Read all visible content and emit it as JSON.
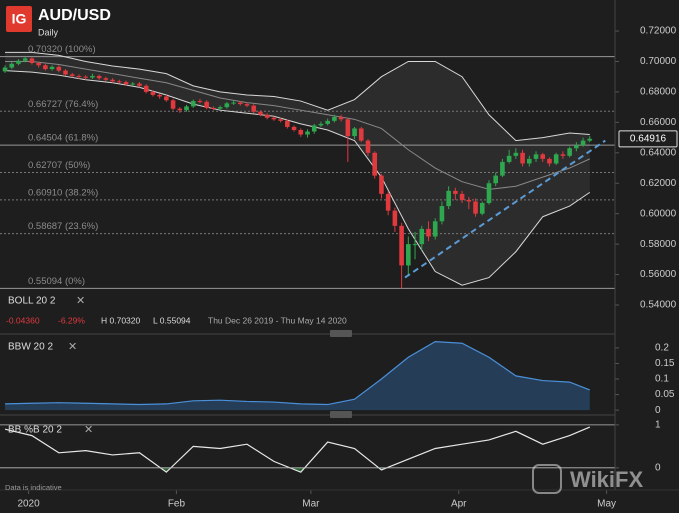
{
  "brand": "IG",
  "footer": "Data is indicative",
  "watermark": "WikiFX",
  "chart_data": [
    {
      "type": "candlestick",
      "title": "AUD/USD",
      "subtitle": "Daily",
      "indicator": {
        "name": "BOLL 20 2",
        "change": "-0.04360",
        "change_pct": "-6.29%",
        "high": "H 0.70320",
        "low": "L 0.55094",
        "range": "Thu Dec 26 2019 - Thu May 14 2020"
      },
      "up_color": "#2ea84f",
      "down_color": "#e0393e",
      "open": [
        0.6935,
        0.696,
        0.6985,
        0.7005,
        0.702,
        0.699,
        0.6975,
        0.695,
        0.6965,
        0.694,
        0.6915,
        0.6905,
        0.69,
        0.6895,
        0.6905,
        0.689,
        0.688,
        0.687,
        0.6865,
        0.685,
        0.6855,
        0.684,
        0.68,
        0.678,
        0.677,
        0.6745,
        0.669,
        0.668,
        0.6705,
        0.674,
        0.6735,
        0.6695,
        0.669,
        0.67,
        0.6725,
        0.673,
        0.672,
        0.671,
        0.667,
        0.665,
        0.663,
        0.662,
        0.661,
        0.657,
        0.655,
        0.652,
        0.654,
        0.658,
        0.659,
        0.661,
        0.6635,
        0.662,
        0.651,
        0.656,
        0.648,
        0.64,
        0.625,
        0.613,
        0.602,
        0.592,
        0.566,
        0.58,
        0.58,
        0.59,
        0.585,
        0.595,
        0.605,
        0.615,
        0.613,
        0.609,
        0.608,
        0.6,
        0.607,
        0.62,
        0.625,
        0.634,
        0.638,
        0.64,
        0.633,
        0.636,
        0.639,
        0.636,
        0.633,
        0.639,
        0.638,
        0.643,
        0.645,
        0.648
      ],
      "high": [
        0.6975,
        0.7,
        0.7015,
        0.7032,
        0.703,
        0.7,
        0.6985,
        0.6975,
        0.6975,
        0.695,
        0.6925,
        0.6915,
        0.691,
        0.692,
        0.6915,
        0.69,
        0.689,
        0.688,
        0.6875,
        0.6865,
        0.6865,
        0.685,
        0.681,
        0.679,
        0.678,
        0.6755,
        0.67,
        0.6715,
        0.675,
        0.6755,
        0.6745,
        0.6705,
        0.671,
        0.6735,
        0.6745,
        0.674,
        0.673,
        0.672,
        0.668,
        0.666,
        0.664,
        0.663,
        0.662,
        0.658,
        0.656,
        0.6555,
        0.659,
        0.6605,
        0.6625,
        0.665,
        0.665,
        0.663,
        0.657,
        0.657,
        0.649,
        0.641,
        0.626,
        0.615,
        0.604,
        0.594,
        0.585,
        0.588,
        0.592,
        0.595,
        0.597,
        0.608,
        0.618,
        0.617,
        0.615,
        0.611,
        0.61,
        0.608,
        0.622,
        0.627,
        0.636,
        0.642,
        0.643,
        0.642,
        0.638,
        0.641,
        0.64,
        0.637,
        0.64,
        0.641,
        0.644,
        0.647,
        0.65,
        0.651
      ],
      "low": [
        0.6925,
        0.695,
        0.6975,
        0.6995,
        0.698,
        0.696,
        0.694,
        0.694,
        0.693,
        0.6905,
        0.6895,
        0.6885,
        0.688,
        0.6885,
        0.688,
        0.687,
        0.686,
        0.6855,
        0.684,
        0.684,
        0.683,
        0.679,
        0.677,
        0.6755,
        0.6735,
        0.668,
        0.6662,
        0.667,
        0.6695,
        0.6725,
        0.6685,
        0.668,
        0.668,
        0.669,
        0.6715,
        0.671,
        0.67,
        0.666,
        0.664,
        0.662,
        0.661,
        0.66,
        0.656,
        0.654,
        0.6505,
        0.65,
        0.6525,
        0.657,
        0.658,
        0.66,
        0.6605,
        0.634,
        0.649,
        0.647,
        0.638,
        0.623,
        0.61,
        0.599,
        0.588,
        0.55094,
        0.56,
        0.57,
        0.576,
        0.582,
        0.583,
        0.593,
        0.603,
        0.609,
        0.607,
        0.603,
        0.598,
        0.599,
        0.606,
        0.618,
        0.624,
        0.633,
        0.636,
        0.631,
        0.631,
        0.634,
        0.634,
        0.631,
        0.632,
        0.636,
        0.637,
        0.641,
        0.644,
        0.647
      ],
      "close": [
        0.696,
        0.6985,
        0.7005,
        0.702,
        0.699,
        0.6975,
        0.695,
        0.6965,
        0.694,
        0.6915,
        0.6905,
        0.69,
        0.6895,
        0.6905,
        0.689,
        0.688,
        0.687,
        0.6865,
        0.685,
        0.6855,
        0.684,
        0.68,
        0.678,
        0.677,
        0.6745,
        0.669,
        0.668,
        0.6705,
        0.674,
        0.6735,
        0.6695,
        0.669,
        0.67,
        0.6725,
        0.673,
        0.672,
        0.671,
        0.667,
        0.665,
        0.663,
        0.662,
        0.661,
        0.657,
        0.655,
        0.652,
        0.654,
        0.658,
        0.659,
        0.661,
        0.6635,
        0.662,
        0.651,
        0.656,
        0.648,
        0.64,
        0.625,
        0.613,
        0.602,
        0.592,
        0.566,
        0.58,
        0.58,
        0.59,
        0.585,
        0.595,
        0.605,
        0.615,
        0.613,
        0.609,
        0.608,
        0.6,
        0.607,
        0.62,
        0.625,
        0.634,
        0.638,
        0.64,
        0.633,
        0.636,
        0.639,
        0.636,
        0.633,
        0.639,
        0.638,
        0.643,
        0.645,
        0.648,
        0.6492
      ],
      "bands": {
        "x": [
          0,
          4,
          8,
          12,
          16,
          20,
          24,
          28,
          32,
          36,
          40,
          44,
          48,
          52,
          56,
          60,
          64,
          68,
          72,
          76,
          80,
          84,
          87
        ],
        "upper": [
          0.706,
          0.706,
          0.704,
          0.7,
          0.697,
          0.695,
          0.692,
          0.684,
          0.68,
          0.678,
          0.677,
          0.674,
          0.668,
          0.675,
          0.69,
          0.7,
          0.7,
          0.69,
          0.665,
          0.648,
          0.65,
          0.653,
          0.652
        ],
        "middle": [
          0.7,
          0.7,
          0.698,
          0.695,
          0.692,
          0.689,
          0.686,
          0.681,
          0.676,
          0.673,
          0.671,
          0.668,
          0.665,
          0.662,
          0.656,
          0.642,
          0.63,
          0.621,
          0.616,
          0.618,
          0.624,
          0.63,
          0.636
        ],
        "lower": [
          0.694,
          0.693,
          0.691,
          0.688,
          0.686,
          0.683,
          0.678,
          0.672,
          0.668,
          0.666,
          0.664,
          0.659,
          0.655,
          0.648,
          0.624,
          0.59,
          0.562,
          0.553,
          0.558,
          0.575,
          0.598,
          0.605,
          0.614
        ],
        "color": "#d8d8d8",
        "fill": "#2c2c2c"
      },
      "fib_levels": [
        {
          "value": 0.7032,
          "label": "0.70320 (100%)",
          "dashed": false
        },
        {
          "value": 0.66727,
          "label": "0.66727 (76.4%)",
          "dashed": true
        },
        {
          "value": 0.64504,
          "label": "0.64504 (61.8%)",
          "dashed": false
        },
        {
          "value": 0.62707,
          "label": "0.62707 (50%)",
          "dashed": true
        },
        {
          "value": 0.6091,
          "label": "0.60910 (38.2%)",
          "dashed": true
        },
        {
          "value": 0.58687,
          "label": "0.58687 (23.6%)",
          "dashed": true
        },
        {
          "value": 0.55094,
          "label": "0.55094 (0%)",
          "dashed": false
        }
      ],
      "trendline": {
        "x": [
          59.5,
          89.3
        ],
        "y": [
          0.558,
          0.648
        ],
        "color": "#5b9bd5"
      },
      "last_price": 0.64916,
      "xlim": [
        -0.75,
        90.75
      ],
      "xticks": [
        {
          "value": 3.5,
          "label": "2020"
        },
        {
          "value": 25.5,
          "label": "Feb"
        },
        {
          "value": 45.5,
          "label": "Mar"
        },
        {
          "value": 67.5,
          "label": "Apr"
        },
        {
          "value": 89.5,
          "label": "May"
        }
      ],
      "ylim": [
        0.5216,
        0.7404
      ],
      "yticks": [
        {
          "value": 0.54,
          "label": "0.54000"
        },
        {
          "value": 0.56,
          "label": "0.56000"
        },
        {
          "value": 0.58,
          "label": "0.58000"
        },
        {
          "value": 0.6,
          "label": "0.60000"
        },
        {
          "value": 0.62,
          "label": "0.62000"
        },
        {
          "value": 0.64,
          "label": "0.64000"
        },
        {
          "value": 0.66,
          "label": "0.66000"
        },
        {
          "value": 0.68,
          "label": "0.68000"
        },
        {
          "value": 0.7,
          "label": "0.70000"
        },
        {
          "value": 0.72,
          "label": "0.72000"
        }
      ]
    },
    {
      "type": "line",
      "name": "BBW 20 2",
      "color": "#4a90d9",
      "fill": "#2a4a70",
      "x": [
        0,
        4,
        8,
        12,
        16,
        20,
        24,
        28,
        32,
        36,
        40,
        44,
        48,
        52,
        56,
        60,
        64,
        68,
        72,
        76,
        80,
        84,
        87
      ],
      "values": [
        0.02,
        0.022,
        0.024,
        0.022,
        0.02,
        0.018,
        0.02,
        0.03,
        0.032,
        0.028,
        0.026,
        0.02,
        0.018,
        0.035,
        0.1,
        0.17,
        0.22,
        0.215,
        0.17,
        0.11,
        0.095,
        0.09,
        0.065
      ],
      "ylim": [
        -0.006,
        0.235
      ],
      "yticks": [
        0,
        0.05,
        0.1,
        0.15,
        0.2
      ],
      "grid": false
    },
    {
      "type": "line",
      "name": "BB %B 20 2",
      "color": "#e8e8e8",
      "fill": "#2f7d3a",
      "x": [
        0,
        4,
        8,
        12,
        16,
        20,
        24,
        28,
        32,
        36,
        40,
        44,
        48,
        52,
        56,
        60,
        64,
        68,
        72,
        76,
        80,
        84,
        87
      ],
      "values": [
        0.9,
        0.75,
        0.35,
        0.4,
        0.3,
        0.35,
        -0.1,
        0.5,
        0.45,
        0.55,
        0.15,
        -0.1,
        0.6,
        0.45,
        -0.05,
        0.2,
        0.45,
        0.55,
        0.65,
        0.85,
        0.55,
        0.75,
        0.95
      ],
      "ylim": [
        -0.33,
        1.16
      ],
      "yticks": [
        0,
        1
      ],
      "grid": true
    }
  ]
}
